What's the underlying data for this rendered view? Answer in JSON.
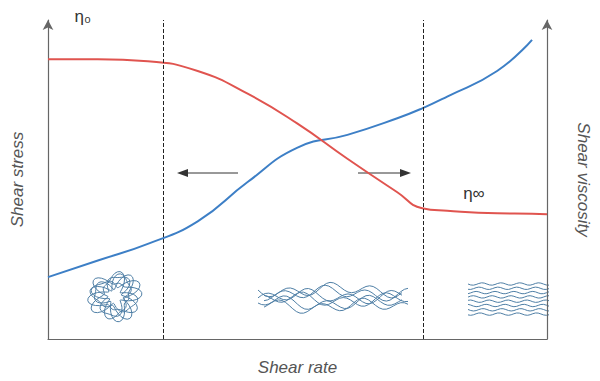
{
  "chart_data": {
    "type": "line",
    "x_label": "Shear rate",
    "y_label": "Shear stress",
    "y2_label": "Shear viscosity",
    "x": [
      0,
      10,
      20,
      30,
      40,
      50,
      60,
      70,
      75,
      80,
      90,
      97,
      100
    ],
    "series": [
      {
        "name": "Shear stress",
        "color": "#3d7fc6",
        "axis": "y",
        "values": [
          19.4,
          24.6,
          29.8,
          36.9,
          49.2,
          60,
          64,
          69.2,
          72.3,
          76,
          84,
          93.8,
          null
        ]
      },
      {
        "name": "Shear viscosity",
        "color": "#e0544f",
        "axis": "y2",
        "values": [
          87.7,
          87.7,
          87.1,
          84,
          76.9,
          67.5,
          56.5,
          46,
          41,
          40.2,
          39.4,
          39.3,
          39.1
        ]
      }
    ],
    "xlim": [
      0,
      100
    ],
    "ylim": [
      0,
      100
    ],
    "y2lim": [
      0,
      100
    ],
    "vlines": [
      23.1,
      75.3
    ],
    "annotations": [
      {
        "text": "η₀",
        "x": 5.3,
        "y": 98.5
      },
      {
        "text": "η∞",
        "x": 83.2,
        "y": 43.1
      }
    ],
    "tick_labels": false,
    "grid": false,
    "marker": "none",
    "line_style": "solid"
  }
}
